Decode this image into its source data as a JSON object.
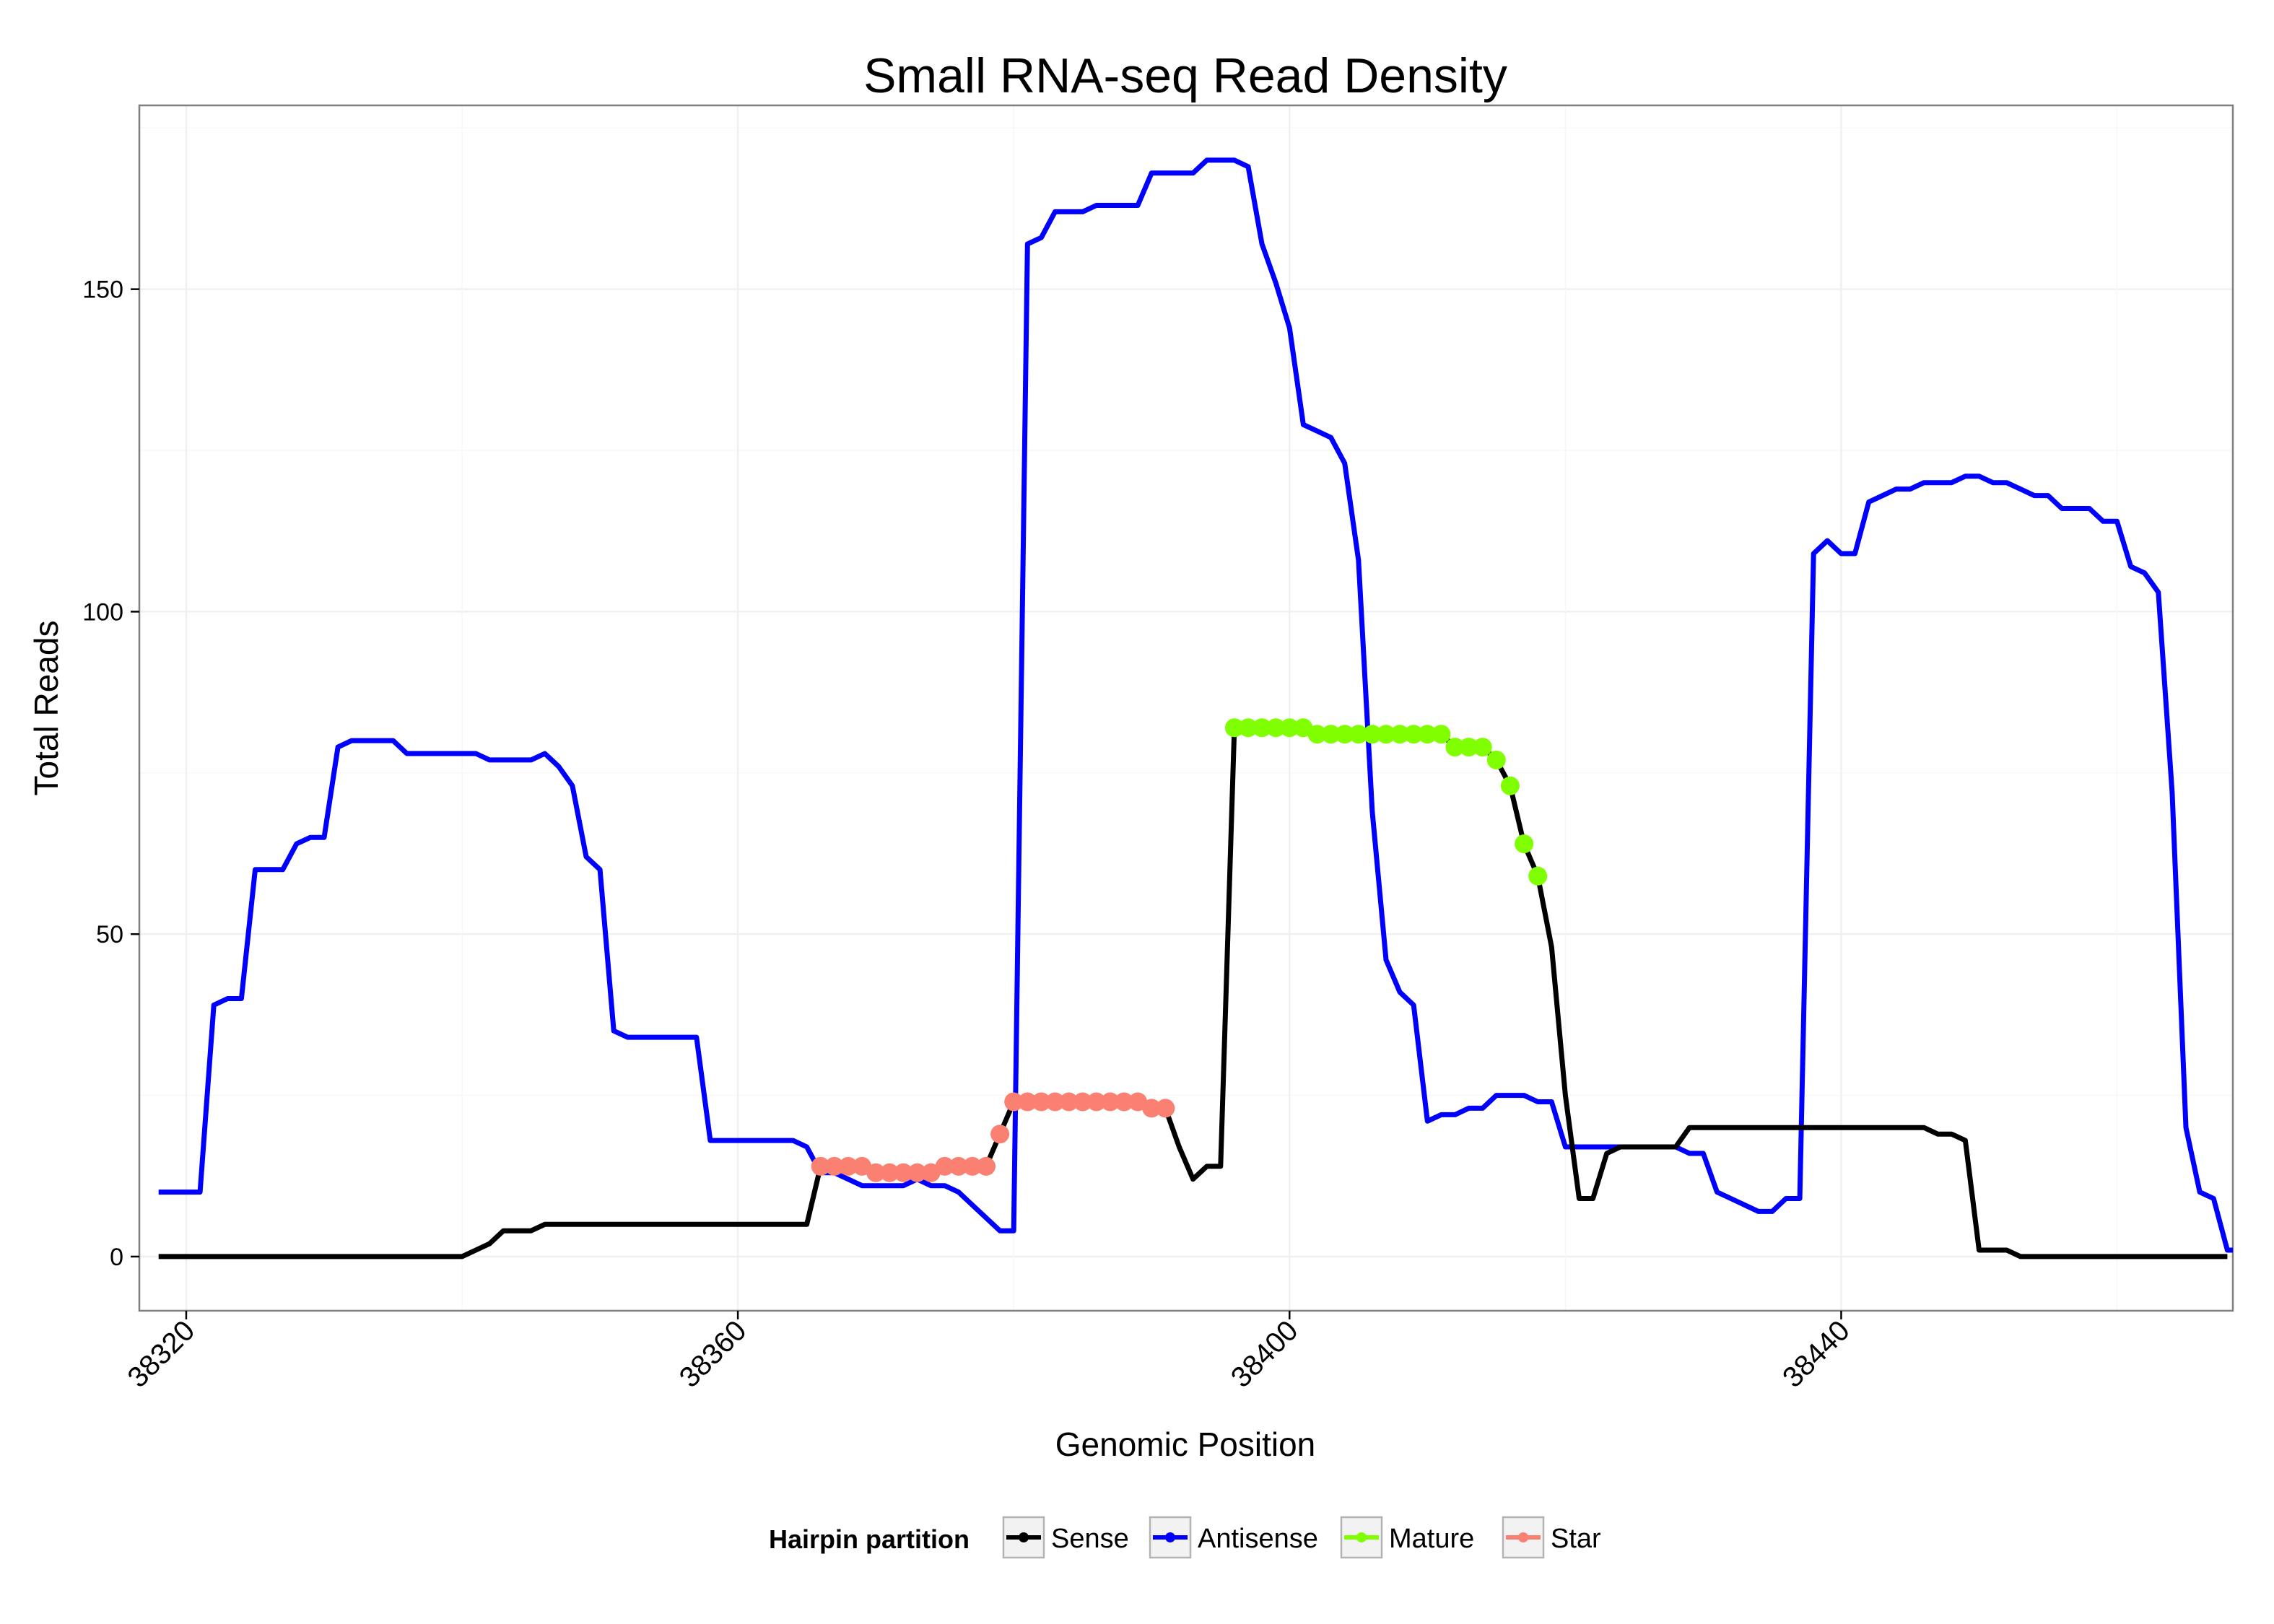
{
  "chart_data": {
    "type": "line",
    "title": "Small RNA-seq Read Density",
    "xlabel": "Genomic Position",
    "ylabel": "Total Reads",
    "xlim": [
      38316.6,
      38468.4
    ],
    "ylim": [
      -8.4,
      178.5
    ],
    "x_ticks": [
      38320,
      38360,
      38400,
      38440
    ],
    "y_ticks": [
      0,
      50,
      100,
      150
    ],
    "grid": true,
    "legend": {
      "title": "Hairpin partition",
      "position": "bottom",
      "entries": [
        {
          "label": "Sense",
          "color": "#000000"
        },
        {
          "label": "Antisense",
          "color": "#0000ff"
        },
        {
          "label": "Mature",
          "color": "#7fff00"
        },
        {
          "label": "Star",
          "color": "#fa8072"
        }
      ]
    },
    "series": [
      {
        "name": "Antisense",
        "color": "#0000ff",
        "points": [
          [
            38318,
            10
          ],
          [
            38321,
            10
          ],
          [
            38322,
            39
          ],
          [
            38323,
            40
          ],
          [
            38324,
            40
          ],
          [
            38325,
            60
          ],
          [
            38327,
            60
          ],
          [
            38328,
            64
          ],
          [
            38329,
            65
          ],
          [
            38330,
            65
          ],
          [
            38331,
            79
          ],
          [
            38332,
            80
          ],
          [
            38335,
            80
          ],
          [
            38336,
            78
          ],
          [
            38341,
            78
          ],
          [
            38342,
            77
          ],
          [
            38345,
            77
          ],
          [
            38346,
            78
          ],
          [
            38347,
            76
          ],
          [
            38348,
            73
          ],
          [
            38349,
            62
          ],
          [
            38350,
            60
          ],
          [
            38351,
            35
          ],
          [
            38352,
            34
          ],
          [
            38357,
            34
          ],
          [
            38358,
            18
          ],
          [
            38364,
            18
          ],
          [
            38365,
            17
          ],
          [
            38366,
            13
          ],
          [
            38367,
            13
          ],
          [
            38368,
            12
          ],
          [
            38369,
            11
          ],
          [
            38372,
            11
          ],
          [
            38373,
            12
          ],
          [
            38374,
            11
          ],
          [
            38375,
            11
          ],
          [
            38376,
            10
          ],
          [
            38377,
            8
          ],
          [
            38378,
            6
          ],
          [
            38379,
            4
          ],
          [
            38380,
            4
          ],
          [
            38381,
            157
          ],
          [
            38382,
            158
          ],
          [
            38383,
            162
          ],
          [
            38385,
            162
          ],
          [
            38386,
            163
          ],
          [
            38389,
            163
          ],
          [
            38390,
            168
          ],
          [
            38393,
            168
          ],
          [
            38394,
            170
          ],
          [
            38396,
            170
          ],
          [
            38397,
            169
          ],
          [
            38398,
            157
          ],
          [
            38399,
            151
          ],
          [
            38400,
            144
          ],
          [
            38401,
            129
          ],
          [
            38402,
            128
          ],
          [
            38403,
            127
          ],
          [
            38404,
            123
          ],
          [
            38405,
            108
          ],
          [
            38406,
            69
          ],
          [
            38407,
            46
          ],
          [
            38408,
            41
          ],
          [
            38409,
            39
          ],
          [
            38410,
            21
          ],
          [
            38411,
            22
          ],
          [
            38412,
            22
          ],
          [
            38413,
            23
          ],
          [
            38414,
            23
          ],
          [
            38415,
            25
          ],
          [
            38417,
            25
          ],
          [
            38418,
            24
          ],
          [
            38419,
            24
          ],
          [
            38420,
            17
          ],
          [
            38428,
            17
          ],
          [
            38429,
            16
          ],
          [
            38430,
            16
          ],
          [
            38431,
            10
          ],
          [
            38432,
            9
          ],
          [
            38434,
            7
          ],
          [
            38435,
            7
          ],
          [
            38436,
            9
          ],
          [
            38437,
            9
          ],
          [
            38438,
            109
          ],
          [
            38439,
            111
          ],
          [
            38440,
            109
          ],
          [
            38441,
            109
          ],
          [
            38442,
            117
          ],
          [
            38443,
            118
          ],
          [
            38444,
            119
          ],
          [
            38445,
            119
          ],
          [
            38446,
            120
          ],
          [
            38448,
            120
          ],
          [
            38449,
            121
          ],
          [
            38450,
            121
          ],
          [
            38451,
            120
          ],
          [
            38452,
            120
          ],
          [
            38453,
            119
          ],
          [
            38454,
            118
          ],
          [
            38455,
            118
          ],
          [
            38456,
            116
          ],
          [
            38458,
            116
          ],
          [
            38459,
            114
          ],
          [
            38460,
            114
          ],
          [
            38461,
            107
          ],
          [
            38462,
            106
          ],
          [
            38463,
            103
          ],
          [
            38464,
            72
          ],
          [
            38465,
            20
          ],
          [
            38466,
            10
          ],
          [
            38467,
            9
          ],
          [
            38468,
            1
          ],
          [
            38468.4,
            1
          ]
        ]
      },
      {
        "name": "Sense",
        "color": "#000000",
        "points": [
          [
            38318,
            0
          ],
          [
            38340,
            0
          ],
          [
            38341,
            1
          ],
          [
            38342,
            2
          ],
          [
            38343,
            4
          ],
          [
            38345,
            4
          ],
          [
            38346,
            5
          ],
          [
            38365,
            5
          ],
          [
            38366,
            14
          ],
          [
            38367,
            14
          ],
          [
            38368,
            14
          ],
          [
            38369,
            14
          ],
          [
            38370,
            13
          ],
          [
            38371,
            13
          ],
          [
            38372,
            13
          ],
          [
            38373,
            13
          ],
          [
            38374,
            13
          ],
          [
            38375,
            14
          ],
          [
            38376,
            14
          ],
          [
            38377,
            14
          ],
          [
            38378,
            14
          ],
          [
            38379,
            19
          ],
          [
            38380,
            24
          ],
          [
            38381,
            24
          ],
          [
            38382,
            24
          ],
          [
            38383,
            24
          ],
          [
            38384,
            24
          ],
          [
            38385,
            24
          ],
          [
            38386,
            24
          ],
          [
            38387,
            24
          ],
          [
            38388,
            24
          ],
          [
            38389,
            24
          ],
          [
            38390,
            23
          ],
          [
            38391,
            23
          ],
          [
            38392,
            17
          ],
          [
            38393,
            12
          ],
          [
            38394,
            14
          ],
          [
            38395,
            14
          ],
          [
            38396,
            82
          ],
          [
            38397,
            82
          ],
          [
            38398,
            82
          ],
          [
            38399,
            82
          ],
          [
            38400,
            82
          ],
          [
            38401,
            82
          ],
          [
            38402,
            81
          ],
          [
            38403,
            81
          ],
          [
            38404,
            81
          ],
          [
            38405,
            81
          ],
          [
            38406,
            81
          ],
          [
            38407,
            81
          ],
          [
            38408,
            81
          ],
          [
            38409,
            81
          ],
          [
            38410,
            81
          ],
          [
            38411,
            81
          ],
          [
            38412,
            79
          ],
          [
            38413,
            79
          ],
          [
            38414,
            79
          ],
          [
            38415,
            77
          ],
          [
            38416,
            73
          ],
          [
            38417,
            64
          ],
          [
            38418,
            59
          ],
          [
            38419,
            48
          ],
          [
            38420,
            25
          ],
          [
            38421,
            9
          ],
          [
            38422,
            9
          ],
          [
            38423,
            16
          ],
          [
            38424,
            17
          ],
          [
            38428,
            17
          ],
          [
            38429,
            20
          ],
          [
            38446,
            20
          ],
          [
            38447,
            19
          ],
          [
            38448,
            19
          ],
          [
            38449,
            18
          ],
          [
            38450,
            1
          ],
          [
            38452,
            1
          ],
          [
            38453,
            0
          ],
          [
            38468,
            0
          ]
        ]
      },
      {
        "name": "Star",
        "color": "#fa8072",
        "points": [
          [
            38366,
            14
          ],
          [
            38367,
            14
          ],
          [
            38368,
            14
          ],
          [
            38369,
            14
          ],
          [
            38370,
            13
          ],
          [
            38371,
            13
          ],
          [
            38372,
            13
          ],
          [
            38373,
            13
          ],
          [
            38374,
            13
          ],
          [
            38375,
            14
          ],
          [
            38376,
            14
          ],
          [
            38377,
            14
          ],
          [
            38378,
            14
          ],
          [
            38379,
            19
          ],
          [
            38380,
            24
          ],
          [
            38381,
            24
          ],
          [
            38382,
            24
          ],
          [
            38383,
            24
          ],
          [
            38384,
            24
          ],
          [
            38385,
            24
          ],
          [
            38386,
            24
          ],
          [
            38387,
            24
          ],
          [
            38388,
            24
          ],
          [
            38389,
            24
          ],
          [
            38390,
            23
          ],
          [
            38391,
            23
          ]
        ]
      },
      {
        "name": "Mature",
        "color": "#7fff00",
        "points": [
          [
            38396,
            82
          ],
          [
            38397,
            82
          ],
          [
            38398,
            82
          ],
          [
            38399,
            82
          ],
          [
            38400,
            82
          ],
          [
            38401,
            82
          ],
          [
            38402,
            81
          ],
          [
            38403,
            81
          ],
          [
            38404,
            81
          ],
          [
            38405,
            81
          ],
          [
            38406,
            81
          ],
          [
            38407,
            81
          ],
          [
            38408,
            81
          ],
          [
            38409,
            81
          ],
          [
            38410,
            81
          ],
          [
            38411,
            81
          ],
          [
            38412,
            79
          ],
          [
            38413,
            79
          ],
          [
            38414,
            79
          ],
          [
            38415,
            77
          ],
          [
            38416,
            73
          ],
          [
            38417,
            64
          ],
          [
            38418,
            59
          ]
        ]
      }
    ]
  }
}
